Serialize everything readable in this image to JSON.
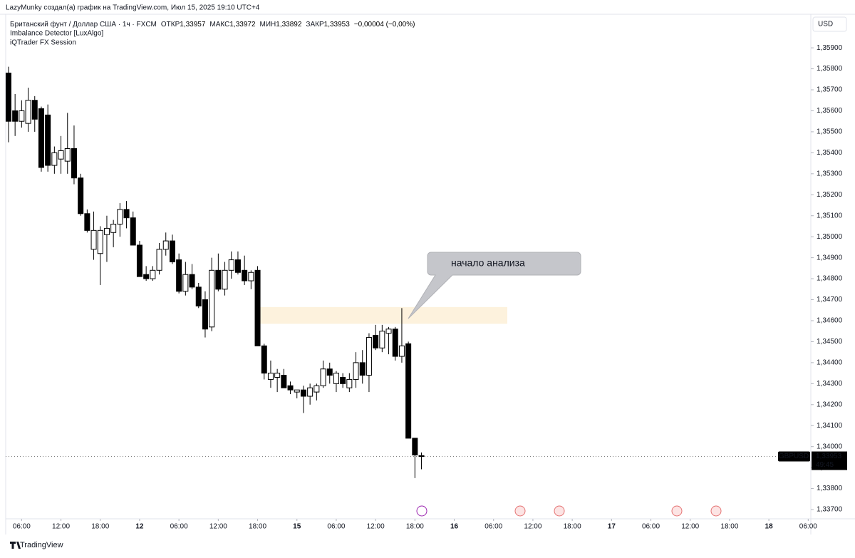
{
  "header": {
    "credit": "LazyMunky создал(а) график на TradingView.com, Июл 15, 2025 19:10 UTC+4",
    "symbol": "Британский фунт / Доллар США · 1ч · FXCM",
    "open_label": "ОТКР",
    "open": "1,33957",
    "high_label": "МАКС",
    "high": "1,33972",
    "low_label": "МИН",
    "low": "1,33892",
    "close_label": "ЗАКР",
    "close": "1,33953",
    "change": "−0,00004 (−0,00%)",
    "indicators": [
      "Imbalance Detector [LuxAlgo]",
      "iQTrader FX Session"
    ]
  },
  "footer": {
    "brand": "TradingView"
  },
  "chart_data": {
    "type": "candlestick",
    "currency": "USD",
    "ticker": "GBPUSD",
    "last_price": {
      "value": 1.33953,
      "label": "1,33953"
    },
    "countdown": "49:45",
    "annotation": "начало анализа",
    "highlight_zone": {
      "high": 1.34665,
      "low": 1.34585
    },
    "xlim": [
      -0.43,
      122.4
    ],
    "xticks": [
      {
        "value": 2,
        "label": "06:00"
      },
      {
        "value": 8,
        "label": "12:00"
      },
      {
        "value": 14,
        "label": "18:00"
      },
      {
        "value": 20,
        "label": "12"
      },
      {
        "value": 26,
        "label": "06:00"
      },
      {
        "value": 32,
        "label": "12:00"
      },
      {
        "value": 38,
        "label": "18:00"
      },
      {
        "value": 44,
        "label": "15"
      },
      {
        "value": 50,
        "label": "06:00"
      },
      {
        "value": 56,
        "label": "12:00"
      },
      {
        "value": 62,
        "label": "18:00"
      },
      {
        "value": 68,
        "label": "16"
      },
      {
        "value": 74,
        "label": "06:00"
      },
      {
        "value": 80,
        "label": "12:00"
      },
      {
        "value": 86,
        "label": "18:00"
      },
      {
        "value": 92,
        "label": "17"
      },
      {
        "value": 98,
        "label": "06:00"
      },
      {
        "value": 104,
        "label": "12:00"
      },
      {
        "value": 110,
        "label": "18:00"
      },
      {
        "value": 116,
        "label": "18"
      },
      {
        "value": 122,
        "label": "06:00"
      }
    ],
    "ylim": [
      1.33656,
      1.3606
    ],
    "yticks": [
      {
        "value": 1.337,
        "label": "1,33700"
      },
      {
        "value": 1.338,
        "label": "1,33800"
      },
      {
        "value": 1.339,
        "label": "1,33900"
      },
      {
        "value": 1.34,
        "label": "1,34000"
      },
      {
        "value": 1.341,
        "label": "1,34100"
      },
      {
        "value": 1.342,
        "label": "1,34200"
      },
      {
        "value": 1.343,
        "label": "1,34300"
      },
      {
        "value": 1.344,
        "label": "1,34400"
      },
      {
        "value": 1.345,
        "label": "1,34500"
      },
      {
        "value": 1.346,
        "label": "1,34600"
      },
      {
        "value": 1.347,
        "label": "1,34700"
      },
      {
        "value": 1.348,
        "label": "1,34800"
      },
      {
        "value": 1.349,
        "label": "1,34900"
      },
      {
        "value": 1.35,
        "label": "1,35000"
      },
      {
        "value": 1.351,
        "label": "1,35100"
      },
      {
        "value": 1.352,
        "label": "1,35200"
      },
      {
        "value": 1.353,
        "label": "1,35300"
      },
      {
        "value": 1.354,
        "label": "1,35400"
      },
      {
        "value": 1.355,
        "label": "1,35500"
      },
      {
        "value": 1.356,
        "label": "1,35600"
      },
      {
        "value": 1.357,
        "label": "1,35700"
      },
      {
        "value": 1.358,
        "label": "1,35800"
      },
      {
        "value": 1.359,
        "label": "1,35900"
      }
    ],
    "bull_color": "#ffffff",
    "bear_color": "#000000",
    "open": [
      1.3578,
      1.356,
      1.3555,
      1.3554,
      1.3565,
      1.3561,
      1.3558,
      1.3534,
      1.3537,
      1.3536,
      1.3542,
      1.3528,
      1.3511,
      1.3494,
      1.3492,
      1.3501,
      1.3502,
      1.3506,
      1.3513,
      1.3509,
      1.3496,
      1.3482,
      1.348,
      1.3484,
      1.3494,
      1.3498,
      1.3489,
      1.3474,
      1.3482,
      1.3476,
      1.347,
      1.3457,
      1.3484,
      1.3475,
      1.3484,
      1.3489,
      1.3484,
      1.3479,
      1.3484,
      1.3448,
      1.3432,
      1.3433,
      1.3434,
      1.3429,
      1.3426,
      1.3427,
      1.3424,
      1.3426,
      1.3429,
      1.3437,
      1.343,
      1.3433,
      1.3428,
      1.3432,
      1.344,
      1.3434,
      1.3453,
      1.3447,
      1.3454,
      1.3456,
      1.3443,
      1.3449,
      1.3404,
      1.33957
    ],
    "high": [
      1.3581,
      1.3568,
      1.3565,
      1.3571,
      1.3567,
      1.3562,
      1.3563,
      1.3543,
      1.3548,
      1.3559,
      1.3553,
      1.353,
      1.3513,
      1.3512,
      1.3505,
      1.351,
      1.3508,
      1.3516,
      1.3517,
      1.3512,
      1.3498,
      1.3486,
      1.3486,
      1.3497,
      1.3502,
      1.3501,
      1.3492,
      1.3488,
      1.3487,
      1.3478,
      1.3474,
      1.349,
      1.3492,
      1.3488,
      1.3493,
      1.3493,
      1.3491,
      1.3484,
      1.3486,
      1.3449,
      1.3441,
      1.3437,
      1.3437,
      1.3431,
      1.3427,
      1.3429,
      1.343,
      1.343,
      1.3441,
      1.344,
      1.3436,
      1.3435,
      1.3435,
      1.3445,
      1.3446,
      1.3454,
      1.3458,
      1.3458,
      1.3457,
      1.3457,
      1.3466,
      1.345,
      1.3404,
      1.33972
    ],
    "low": [
      1.3545,
      1.3548,
      1.3552,
      1.355,
      1.355,
      1.3531,
      1.3531,
      1.353,
      1.353,
      1.353,
      1.3525,
      1.351,
      1.3502,
      1.3489,
      1.3477,
      1.3488,
      1.3495,
      1.35,
      1.3504,
      1.3497,
      1.3481,
      1.3479,
      1.3479,
      1.3482,
      1.3491,
      1.3487,
      1.3473,
      1.3472,
      1.3475,
      1.3466,
      1.3452,
      1.3455,
      1.3474,
      1.3472,
      1.348,
      1.3482,
      1.3477,
      1.3475,
      1.3448,
      1.3432,
      1.3428,
      1.3426,
      1.3428,
      1.3425,
      1.3423,
      1.3416,
      1.342,
      1.3422,
      1.3428,
      1.343,
      1.3426,
      1.3428,
      1.3426,
      1.3428,
      1.343,
      1.3426,
      1.3446,
      1.3445,
      1.3444,
      1.3441,
      1.344,
      1.3404,
      1.3385,
      1.33892
    ],
    "close": [
      1.3555,
      1.3555,
      1.356,
      1.3565,
      1.3556,
      1.3533,
      1.3534,
      1.354,
      1.3541,
      1.3542,
      1.3528,
      1.3511,
      1.3503,
      1.3503,
      1.3503,
      1.3504,
      1.3506,
      1.3513,
      1.3509,
      1.3496,
      1.3481,
      1.348,
      1.3484,
      1.3494,
      1.3498,
      1.3488,
      1.3474,
      1.3482,
      1.3476,
      1.3467,
      1.3456,
      1.3484,
      1.3475,
      1.3484,
      1.3489,
      1.3483,
      1.3479,
      1.3483,
      1.3448,
      1.3435,
      1.3435,
      1.3435,
      1.3428,
      1.3427,
      1.3427,
      1.3424,
      1.3428,
      1.3429,
      1.3437,
      1.3434,
      1.3435,
      1.343,
      1.3432,
      1.344,
      1.3434,
      1.3452,
      1.3447,
      1.3455,
      1.3456,
      1.3443,
      1.3448,
      1.3404,
      1.3396,
      1.33953
    ]
  }
}
